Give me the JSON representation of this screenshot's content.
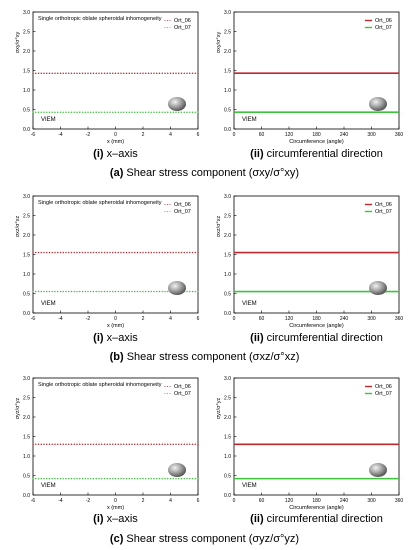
{
  "chart_data": [
    {
      "type": "scatter",
      "panel": "a-i",
      "title": "Single orthotropic oblate spheroidal inhomogeneity",
      "xlabel": "x (mm)",
      "ylabel": "σxy/σ°xy",
      "xlim": [
        -6,
        6
      ],
      "ylim": [
        0,
        3.0
      ],
      "xticks": [
        "-6",
        "-4",
        "-2",
        "0",
        "2",
        "4",
        "6"
      ],
      "yticks": [
        "0.0",
        "0.5",
        "1.0",
        "1.5",
        "2.0",
        "2.5",
        "3.0"
      ],
      "annotation": "VIEM",
      "legend_position": "top-right",
      "series": [
        {
          "name": "Ort_06",
          "color": "#c0282d",
          "y": 1.43
        },
        {
          "name": "Ort_07",
          "color": "#3cc43c",
          "y": 0.43
        }
      ]
    },
    {
      "type": "line",
      "panel": "a-ii",
      "title": "",
      "xlabel": "Circumference (angle)",
      "ylabel": "σxy/σ°xy",
      "xlim": [
        0,
        360
      ],
      "ylim": [
        0,
        3.0
      ],
      "xticks": [
        "0",
        "60",
        "120",
        "180",
        "240",
        "300",
        "360"
      ],
      "yticks": [
        "0.0",
        "0.5",
        "1.0",
        "1.5",
        "2.0",
        "2.5",
        "3.0"
      ],
      "annotation": "VIEM",
      "legend_position": "top-right",
      "series": [
        {
          "name": "Ort_06",
          "color": "#c0282d",
          "y": 1.43
        },
        {
          "name": "Ort_07",
          "color": "#3cc43c",
          "y": 0.43
        }
      ]
    },
    {
      "type": "scatter",
      "panel": "b-i",
      "title": "Single orthotropic oblate spheroidal inhomogeneity",
      "xlabel": "x (mm)",
      "ylabel": "σxz/σ°xz",
      "xlim": [
        -6,
        6
      ],
      "ylim": [
        0,
        3.0
      ],
      "xticks": [
        "-6",
        "-4",
        "-2",
        "0",
        "2",
        "4",
        "6"
      ],
      "yticks": [
        "0.0",
        "0.5",
        "1.0",
        "1.5",
        "2.0",
        "2.5",
        "3.0"
      ],
      "annotation": "VIEM",
      "legend_position": "top-right",
      "series": [
        {
          "name": "Ort_06",
          "color": "#c0282d",
          "y": 1.55
        },
        {
          "name": "Ort_07",
          "color": "#3cc43c",
          "y": 0.55
        }
      ]
    },
    {
      "type": "line",
      "panel": "b-ii",
      "title": "",
      "xlabel": "Circumference (angle)",
      "ylabel": "σxz/σ°xz",
      "xlim": [
        0,
        360
      ],
      "ylim": [
        0,
        3.0
      ],
      "xticks": [
        "0",
        "60",
        "120",
        "180",
        "240",
        "300",
        "360"
      ],
      "yticks": [
        "0.0",
        "0.5",
        "1.0",
        "1.5",
        "2.0",
        "2.5",
        "3.0"
      ],
      "annotation": "VIEM",
      "legend_position": "top-right",
      "series": [
        {
          "name": "Ort_06",
          "color": "#c0282d",
          "y": 1.55
        },
        {
          "name": "Ort_07",
          "color": "#3cc43c",
          "y": 0.55
        }
      ]
    },
    {
      "type": "scatter",
      "panel": "c-i",
      "title": "Single orthotropic oblate spheroidal inhomogeneity",
      "xlabel": "x (mm)",
      "ylabel": "σyz/σ°yz",
      "xlim": [
        -6,
        6
      ],
      "ylim": [
        0,
        3.0
      ],
      "xticks": [
        "-6",
        "-4",
        "-2",
        "0",
        "2",
        "4",
        "6"
      ],
      "yticks": [
        "0.0",
        "0.5",
        "1.0",
        "1.5",
        "2.0",
        "2.5",
        "3.0"
      ],
      "annotation": "VIEM",
      "legend_position": "top-right",
      "series": [
        {
          "name": "Ort_06",
          "color": "#c0282d",
          "y": 1.3
        },
        {
          "name": "Ort_07",
          "color": "#3cc43c",
          "y": 0.42
        }
      ]
    },
    {
      "type": "line",
      "panel": "c-ii",
      "title": "",
      "xlabel": "Circumference (angle)",
      "ylabel": "σyz/σ°yz",
      "xlim": [
        0,
        360
      ],
      "ylim": [
        0,
        3.0
      ],
      "xticks": [
        "0",
        "60",
        "120",
        "180",
        "240",
        "300",
        "360"
      ],
      "yticks": [
        "0.0",
        "0.5",
        "1.0",
        "1.5",
        "2.0",
        "2.5",
        "3.0"
      ],
      "annotation": "VIEM",
      "legend_position": "top-right",
      "series": [
        {
          "name": "Ort_06",
          "color": "#c0282d",
          "y": 1.3
        },
        {
          "name": "Ort_07",
          "color": "#3cc43c",
          "y": 0.42
        }
      ]
    }
  ],
  "captions": {
    "sub": [
      {
        "num": "(i)",
        "text": "x–axis"
      },
      {
        "num": "(ii)",
        "text": "circumferential direction"
      }
    ],
    "groups": [
      {
        "label": "(a)",
        "text": "Shear stress component (σxy/σ°xy)"
      },
      {
        "label": "(b)",
        "text": "Shear stress component (σxz/σ°xz)"
      },
      {
        "label": "(c)",
        "text": "Shear stress component (σyz/σ°yz)"
      }
    ]
  }
}
